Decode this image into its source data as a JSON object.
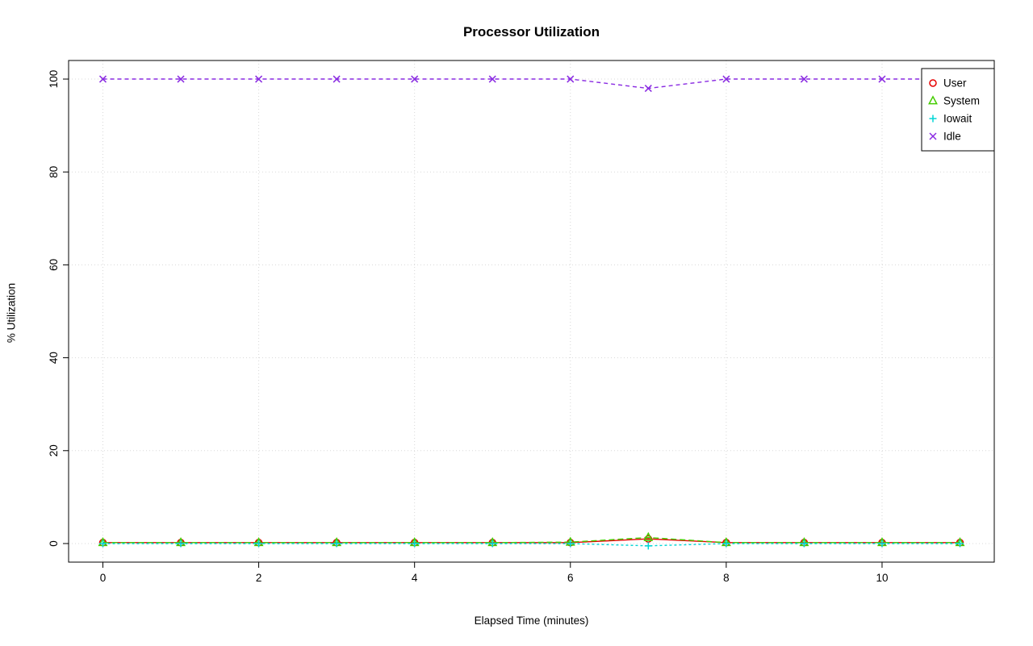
{
  "chart_data": {
    "type": "line",
    "title": "Processor Utilization",
    "xlabel": "Elapsed Time (minutes)",
    "ylabel": "% Utilization",
    "x": [
      0,
      1,
      2,
      3,
      4,
      5,
      6,
      7,
      8,
      9,
      10,
      11
    ],
    "xticks": [
      0,
      2,
      4,
      6,
      8,
      10
    ],
    "yticks": [
      0,
      20,
      40,
      60,
      80,
      100
    ],
    "xlim": [
      -0.44,
      11.44
    ],
    "ylim": [
      -4,
      104
    ],
    "grid": true,
    "grid_color": "#d8d8d8",
    "legend_position": "topright",
    "series": [
      {
        "name": "User",
        "color": "#e60000",
        "marker": "circle",
        "dash": "",
        "values": [
          0.2,
          0.2,
          0.2,
          0.2,
          0.2,
          0.2,
          0.2,
          1.0,
          0.2,
          0.2,
          0.2,
          0.2
        ]
      },
      {
        "name": "System",
        "color": "#44cc00",
        "marker": "triangle",
        "dash": "7 4",
        "values": [
          0.2,
          0.2,
          0.2,
          0.2,
          0.2,
          0.2,
          0.3,
          1.3,
          0.2,
          0.2,
          0.2,
          0.2
        ]
      },
      {
        "name": "Iowait",
        "color": "#00d5d5",
        "marker": "plus",
        "dash": "3 3",
        "values": [
          0,
          0,
          0,
          0,
          0,
          0,
          0,
          -0.5,
          0,
          0,
          0,
          0
        ]
      },
      {
        "name": "Idle",
        "color": "#8a2be2",
        "marker": "x",
        "dash": "5 4",
        "values": [
          100,
          100,
          100,
          100,
          100,
          100,
          100,
          98,
          100,
          100,
          100,
          100
        ]
      }
    ]
  }
}
